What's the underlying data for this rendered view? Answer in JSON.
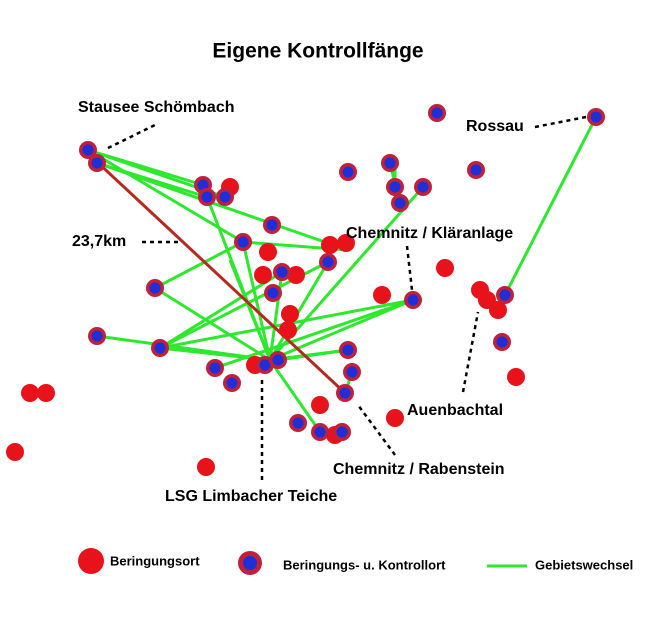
{
  "title": "Eigene Kontrollfänge",
  "labels": {
    "stausee": "Stausee Schömbach",
    "rossau": "Rossau",
    "distance": "23,7km",
    "klaeranlage": "Chemnitz / Kläranlage",
    "auenbachtal": "Auenbachtal",
    "rabenstein": "Chemnitz / Rabenstein",
    "limbach": "LSG Limbacher Teiche"
  },
  "legend": {
    "ringing": "Beringungsort",
    "ringing_control": "Beringungs- u. Kontrollort",
    "change": "Gebietswechsel"
  }
}
